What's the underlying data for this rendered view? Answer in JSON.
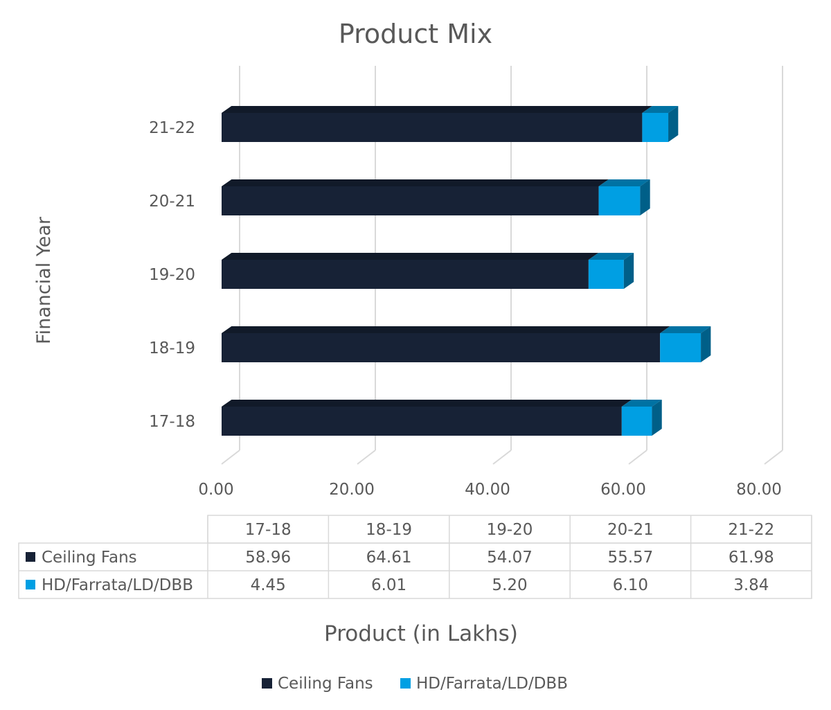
{
  "chart_data": {
    "type": "bar",
    "orientation": "horizontal",
    "stacked": true,
    "style_3d": true,
    "title": "Product Mix",
    "xlabel": "Product (in Lakhs)",
    "ylabel": "Financial Year",
    "categories": [
      "17-18",
      "18-19",
      "19-20",
      "20-21",
      "21-22"
    ],
    "xlim": [
      0,
      80
    ],
    "x_ticks": [
      "0.00",
      "20.00",
      "40.00",
      "60.00",
      "80.00"
    ],
    "grid": true,
    "legend_position": "bottom",
    "series": [
      {
        "name": "Ceiling Fans",
        "values": [
          58.96,
          64.61,
          54.07,
          55.57,
          61.98
        ],
        "color": "#172236"
      },
      {
        "name": "HD/Farrata/LD/DBB",
        "values": [
          4.45,
          6.01,
          5.2,
          6.1,
          3.84
        ],
        "color": "#009FE3"
      }
    ],
    "data_table": {
      "header": [
        "17-18",
        "18-19",
        "19-20",
        "20-21",
        "21-22"
      ],
      "rows": [
        {
          "series": "Ceiling Fans",
          "cells": [
            "58.96",
            "64.61",
            "54.07",
            "55.57",
            "61.98"
          ]
        },
        {
          "series": "HD/Farrata/LD/DBB",
          "cells": [
            "4.45",
            "6.01",
            "5.20",
            "6.10",
            "3.84"
          ]
        }
      ]
    }
  }
}
